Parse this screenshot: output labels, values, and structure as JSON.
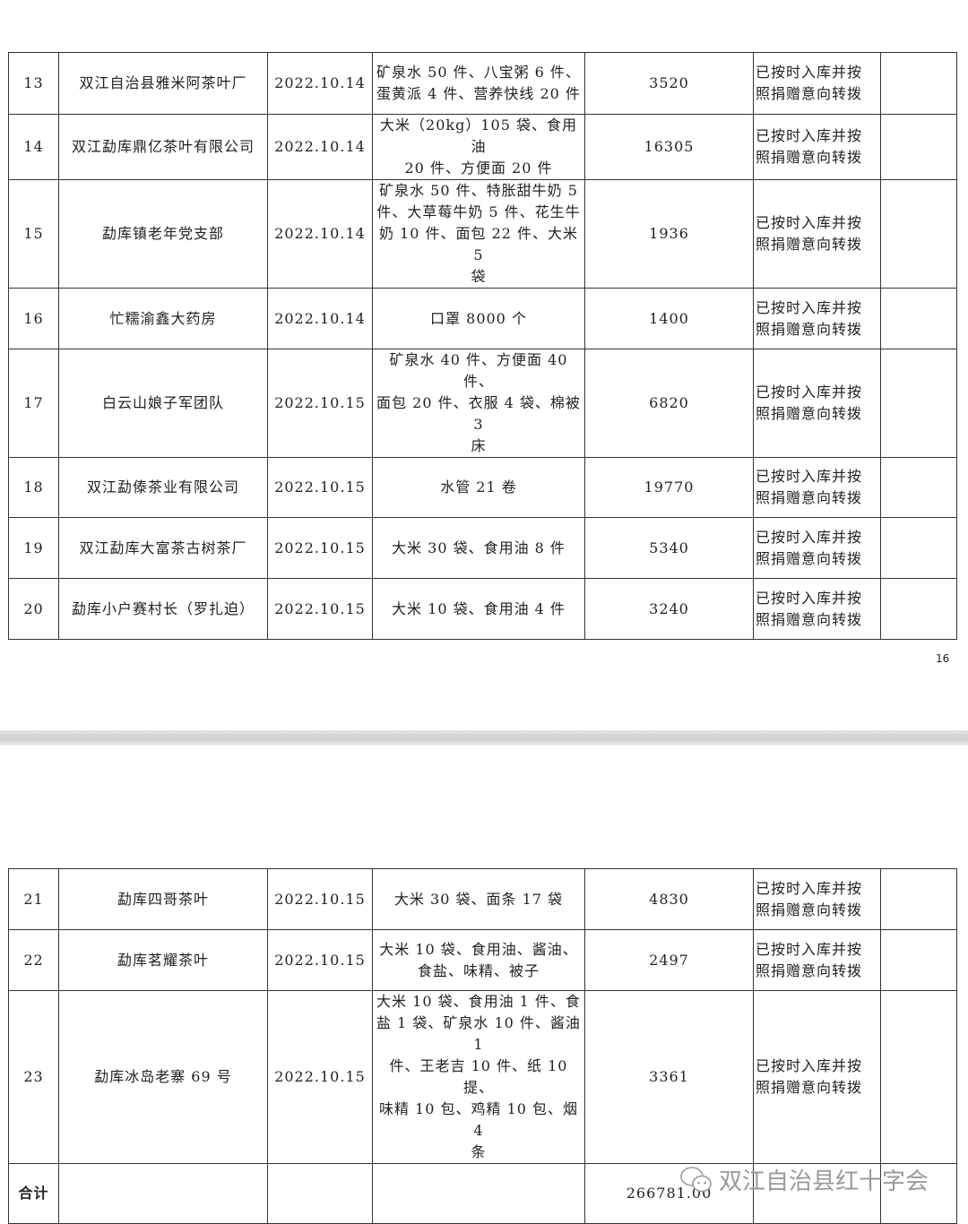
{
  "page1": {
    "rows": [
      {
        "no": "13",
        "donor": "双江自治县雅米阿茶叶厂",
        "date": "2022.10.14",
        "items": "矿泉水 50 件、八宝粥 6 件、\n蛋黄派 4 件、营养快线 20 件",
        "amount": "3520",
        "status": "已按时入库并按\n照捐赠意向转拨",
        "note": ""
      },
      {
        "no": "14",
        "donor": "双江勐库鼎亿茶叶有限公司",
        "date": "2022.10.14",
        "items": "大米（20kg）105 袋、食用油\n20 件、方便面 20 件",
        "amount": "16305",
        "status": "已按时入库并按\n照捐赠意向转拨",
        "note": ""
      },
      {
        "no": "15",
        "donor": "勐库镇老年党支部",
        "date": "2022.10.14",
        "items": "矿泉水 50 件、特胀甜牛奶 5\n件、大草莓牛奶 5 件、花生牛\n奶 10 件、面包 22 件、大米 5\n袋",
        "amount": "1936",
        "status": "已按时入库并按\n照捐赠意向转拨",
        "note": ""
      },
      {
        "no": "16",
        "donor": "忙糯渝鑫大药房",
        "date": "2022.10.14",
        "items": "口罩 8000 个",
        "amount": "1400",
        "status": "已按时入库并按\n照捐赠意向转拨",
        "note": ""
      },
      {
        "no": "17",
        "donor": "白云山娘子军团队",
        "date": "2022.10.15",
        "items": "矿泉水 40 件、方便面 40 件、\n面包 20 件、衣服 4 袋、棉被 3\n床",
        "amount": "6820",
        "status": "已按时入库并按\n照捐赠意向转拨",
        "note": ""
      },
      {
        "no": "18",
        "donor": "双江勐傣茶业有限公司",
        "date": "2022.10.15",
        "items": "水管 21 卷",
        "amount": "19770",
        "status": "已按时入库并按\n照捐赠意向转拨",
        "note": ""
      },
      {
        "no": "19",
        "donor": "双江勐库大富茶古树茶厂",
        "date": "2022.10.15",
        "items": "大米 30 袋、食用油 8 件",
        "amount": "5340",
        "status": "已按时入库并按\n照捐赠意向转拨",
        "note": ""
      },
      {
        "no": "20",
        "donor": "勐库小户赛村长（罗扎迫）",
        "date": "2022.10.15",
        "items": "大米 10 袋、食用油 4 件",
        "amount": "3240",
        "status": "已按时入库并按\n照捐赠意向转拨",
        "note": ""
      }
    ],
    "page_number": "16"
  },
  "page2": {
    "rows": [
      {
        "no": "21",
        "donor": "勐库四哥茶叶",
        "date": "2022.10.15",
        "items": "大米 30 袋、面条 17 袋",
        "amount": "4830",
        "status": "已按时入库并按\n照捐赠意向转拨",
        "note": ""
      },
      {
        "no": "22",
        "donor": "勐库茗耀茶叶",
        "date": "2022.10.15",
        "items": "大米 10 袋、食用油、酱油、\n食盐、味精、被子",
        "amount": "2497",
        "status": "已按时入库并按\n照捐赠意向转拨",
        "note": ""
      },
      {
        "no": "23",
        "donor": "勐库冰岛老寨 69 号",
        "date": "2022.10.15",
        "items": "大米 10 袋、食用油 1 件、食\n盐 1 袋、矿泉水 10 件、酱油 1\n件、王老吉 10 件、纸 10 提、\n味精 10 包、鸡精 10 包、烟 4\n条",
        "amount": "3361",
        "status": "已按时入库并按\n照捐赠意向转拨",
        "note": ""
      }
    ],
    "total": {
      "label": "合计",
      "amount": "266781.00"
    }
  },
  "watermark": {
    "text": "双江自治县红十字会",
    "icon": "wechat-icon"
  }
}
